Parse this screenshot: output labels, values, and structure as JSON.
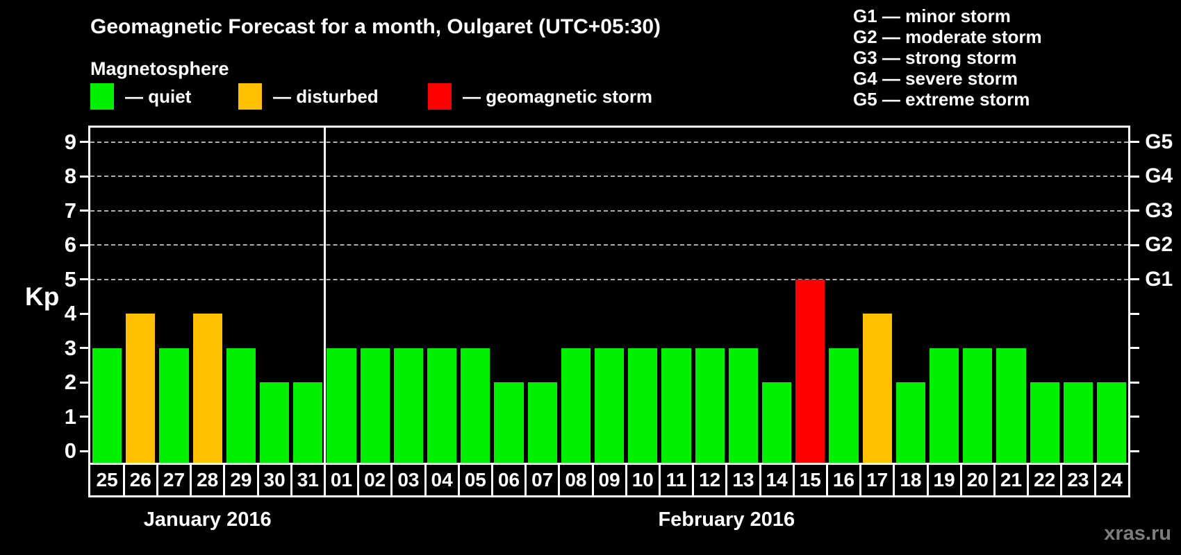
{
  "title": "Geomagnetic Forecast for a month, Oulgaret (UTC+05:30)",
  "subtitle": "Magnetosphere",
  "legend": [
    {
      "status": "quiet",
      "label": "— quiet"
    },
    {
      "status": "disturbed",
      "label": "— disturbed"
    },
    {
      "status": "storm",
      "label": "— geomagnetic storm"
    }
  ],
  "g_legend": [
    "G1 — minor storm",
    "G2 — moderate storm",
    "G3 — strong storm",
    "G4 — severe storm",
    "G5 — extreme storm"
  ],
  "watermark": "xras.ru",
  "chart_data": {
    "type": "bar",
    "ylabel": "Kp",
    "ylim": [
      0,
      9.4
    ],
    "yticks": [
      0,
      1,
      2,
      3,
      4,
      5,
      6,
      7,
      8,
      9
    ],
    "grid_levels": [
      5,
      6,
      7,
      8,
      9
    ],
    "right_axis_labels": [
      {
        "label": "G1",
        "kp": 5
      },
      {
        "label": "G2",
        "kp": 6
      },
      {
        "label": "G3",
        "kp": 7
      },
      {
        "label": "G4",
        "kp": 8
      },
      {
        "label": "G5",
        "kp": 9
      }
    ],
    "status_colors": {
      "quiet": "#00f000",
      "disturbed": "#ffc000",
      "storm": "#ff0000"
    },
    "months": [
      {
        "label": "January 2016",
        "days": [
          {
            "day": "25",
            "kp": 3,
            "status": "quiet"
          },
          {
            "day": "26",
            "kp": 4,
            "status": "disturbed"
          },
          {
            "day": "27",
            "kp": 3,
            "status": "quiet"
          },
          {
            "day": "28",
            "kp": 4,
            "status": "disturbed"
          },
          {
            "day": "29",
            "kp": 3,
            "status": "quiet"
          },
          {
            "day": "30",
            "kp": 2,
            "status": "quiet"
          },
          {
            "day": "31",
            "kp": 2,
            "status": "quiet"
          }
        ]
      },
      {
        "label": "February 2016",
        "days": [
          {
            "day": "01",
            "kp": 3,
            "status": "quiet"
          },
          {
            "day": "02",
            "kp": 3,
            "status": "quiet"
          },
          {
            "day": "03",
            "kp": 3,
            "status": "quiet"
          },
          {
            "day": "04",
            "kp": 3,
            "status": "quiet"
          },
          {
            "day": "05",
            "kp": 3,
            "status": "quiet"
          },
          {
            "day": "06",
            "kp": 2,
            "status": "quiet"
          },
          {
            "day": "07",
            "kp": 2,
            "status": "quiet"
          },
          {
            "day": "08",
            "kp": 3,
            "status": "quiet"
          },
          {
            "day": "09",
            "kp": 3,
            "status": "quiet"
          },
          {
            "day": "10",
            "kp": 3,
            "status": "quiet"
          },
          {
            "day": "11",
            "kp": 3,
            "status": "quiet"
          },
          {
            "day": "12",
            "kp": 3,
            "status": "quiet"
          },
          {
            "day": "13",
            "kp": 3,
            "status": "quiet"
          },
          {
            "day": "14",
            "kp": 2,
            "status": "quiet"
          },
          {
            "day": "15",
            "kp": 5,
            "status": "storm"
          },
          {
            "day": "16",
            "kp": 3,
            "status": "quiet"
          },
          {
            "day": "17",
            "kp": 4,
            "status": "disturbed"
          },
          {
            "day": "18",
            "kp": 2,
            "status": "quiet"
          },
          {
            "day": "19",
            "kp": 3,
            "status": "quiet"
          },
          {
            "day": "20",
            "kp": 3,
            "status": "quiet"
          },
          {
            "day": "21",
            "kp": 3,
            "status": "quiet"
          },
          {
            "day": "22",
            "kp": 2,
            "status": "quiet"
          },
          {
            "day": "23",
            "kp": 2,
            "status": "quiet"
          },
          {
            "day": "24",
            "kp": 2,
            "status": "quiet"
          }
        ]
      }
    ]
  }
}
